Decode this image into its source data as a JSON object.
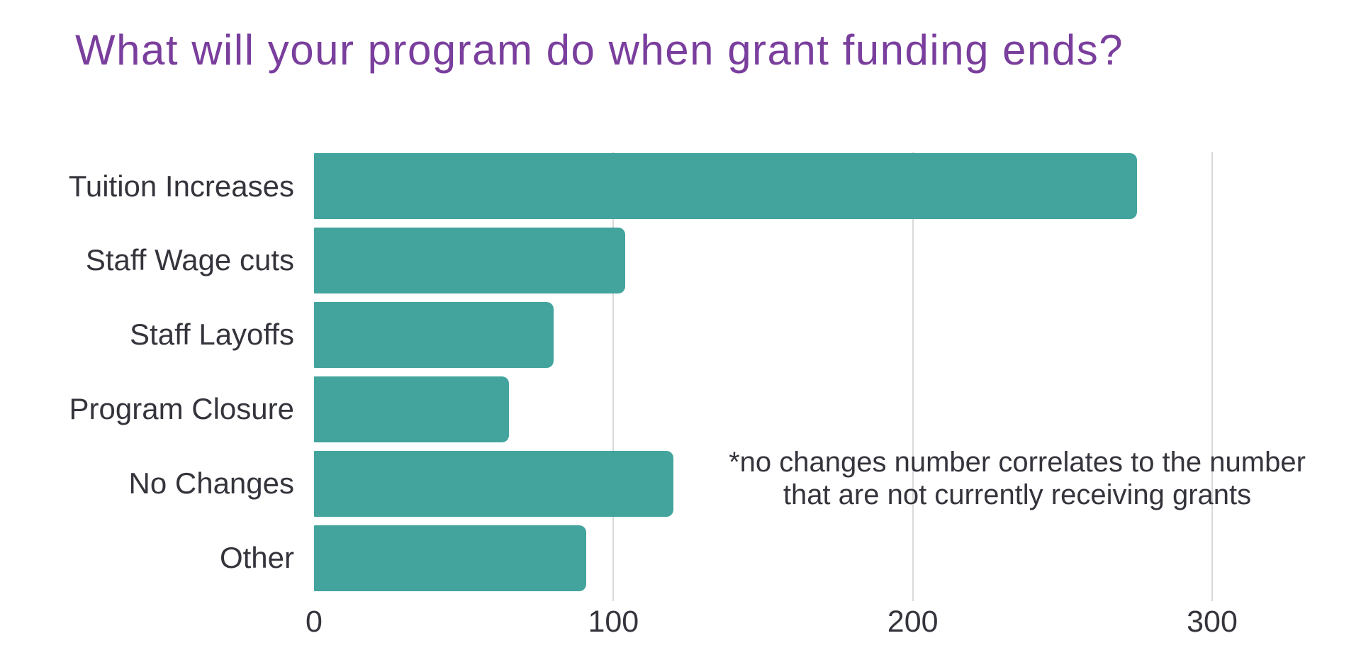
{
  "title": "What will your program do when grant funding ends?",
  "colors": {
    "bar": "#42A49D",
    "title": "#7A3E9D",
    "text": "#35343C",
    "gridline": "#D9D9D9"
  },
  "annotation": {
    "line1": "*no changes number correlates to the number",
    "line2": "that are not currently receiving grants"
  },
  "chart_data": {
    "type": "bar",
    "orientation": "horizontal",
    "title": "What will your program do when grant funding ends?",
    "categories": [
      "Tuition Increases",
      "Staff Wage cuts",
      "Staff Layoffs",
      "Program Closure",
      "No Changes",
      "Other"
    ],
    "values": [
      275,
      104,
      80,
      65,
      120,
      91
    ],
    "xlabel": "",
    "ylabel": "",
    "x_ticks": [
      0,
      100,
      200,
      300
    ],
    "xlim": [
      0,
      300
    ],
    "grid": "vertical-gridlines-at-100-200-300",
    "legend": "none",
    "annotation": "*no changes number correlates to the number that are not currently receiving grants"
  }
}
